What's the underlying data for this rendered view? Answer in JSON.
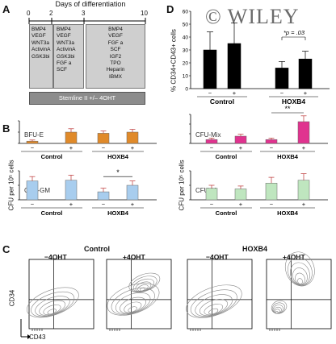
{
  "panelA": {
    "label": "A",
    "title": "Days of differentiation",
    "ticks": [
      "0",
      "2",
      "3",
      "10"
    ],
    "box1": [
      "BMP4",
      "VEGF",
      "WNT3a",
      "ActivinA",
      "GSK3bi"
    ],
    "box2": [
      "BMP4",
      "VEGF",
      "WNT3a",
      "ActivinA",
      "GSK3bi",
      "FGF a",
      "SCF"
    ],
    "box3": [
      "BMP4",
      "VEGF",
      "FGF a",
      "SCF",
      "IGF2",
      "TPO",
      "Heparin",
      "IBMX"
    ],
    "stemline": "Stemline II +/– 4OHT"
  },
  "panelD": {
    "label": "D",
    "watermark": "© WILEY",
    "ylabel": "% CD34+CD43+ cells",
    "pvalue": "*p = .03"
  },
  "panelB": {
    "label": "B",
    "ylabel": "CFU per 10⁵ cells",
    "bfu": "BFU-E",
    "gm": "CFU-GM",
    "mix": "CFU-Mix",
    "m": "CFU-M",
    "sig_gm": "*",
    "sig_mix": "**"
  },
  "groups": {
    "control": "Control",
    "hoxb4": "HOXB4",
    "minus": "−",
    "plus": "+"
  },
  "panelC": {
    "label": "C",
    "control": "Control",
    "hoxb4": "HOXB4",
    "minus4oht": "−4OHT",
    "plus4oht": "+4OHT",
    "yaxis": "CD34",
    "xaxis": "CD43"
  },
  "chart_data": [
    {
      "type": "bar",
      "panel": "D",
      "categories": [
        "Control −",
        "Control +",
        "HOXB4 −",
        "HOXB4 +"
      ],
      "values": [
        30,
        35,
        16,
        23
      ],
      "errors": [
        14,
        16,
        5,
        6
      ],
      "ylim": [
        0,
        60
      ],
      "yticks": [
        0,
        10,
        20,
        30,
        40,
        50,
        60
      ],
      "color": "#000000"
    },
    {
      "type": "bar",
      "panel": "B",
      "subtitle": "BFU-E",
      "categories": [
        "Control −",
        "Control +",
        "HOXB4 −",
        "HOXB4 +"
      ],
      "values": [
        20,
        100,
        90,
        100
      ],
      "errors": [
        10,
        30,
        20,
        25
      ],
      "ylim": [
        0,
        200
      ],
      "yticks": [
        0,
        100,
        200
      ],
      "color": "#e08a2a"
    },
    {
      "type": "bar",
      "panel": "B",
      "subtitle": "CFU-Mix",
      "categories": [
        "Control −",
        "Control +",
        "HOXB4 −",
        "HOXB4 +"
      ],
      "values": [
        80,
        150,
        80,
        450
      ],
      "errors": [
        30,
        40,
        30,
        120
      ],
      "ylim": [
        0,
        600
      ],
      "yticks": [
        0,
        200,
        400,
        600
      ],
      "color": "#e0338f"
    },
    {
      "type": "bar",
      "panel": "B",
      "subtitle": "CFU-GM",
      "categories": [
        "Control −",
        "Control +",
        "HOXB4 −",
        "HOXB4 +"
      ],
      "values": [
        260,
        270,
        110,
        200
      ],
      "errors": [
        60,
        70,
        50,
        60
      ],
      "ylim": [
        0,
        400
      ],
      "yticks": [
        0,
        200,
        400
      ],
      "color": "#a8cdee"
    },
    {
      "type": "bar",
      "panel": "B",
      "subtitle": "CFU-M",
      "categories": [
        "Control −",
        "Control +",
        "HOXB4 −",
        "HOXB4 +"
      ],
      "values": [
        160,
        150,
        230,
        270
      ],
      "errors": [
        40,
        40,
        80,
        90
      ],
      "ylim": [
        0,
        400
      ],
      "yticks": [
        0,
        200,
        400
      ],
      "color": "#bfe6bf"
    }
  ]
}
